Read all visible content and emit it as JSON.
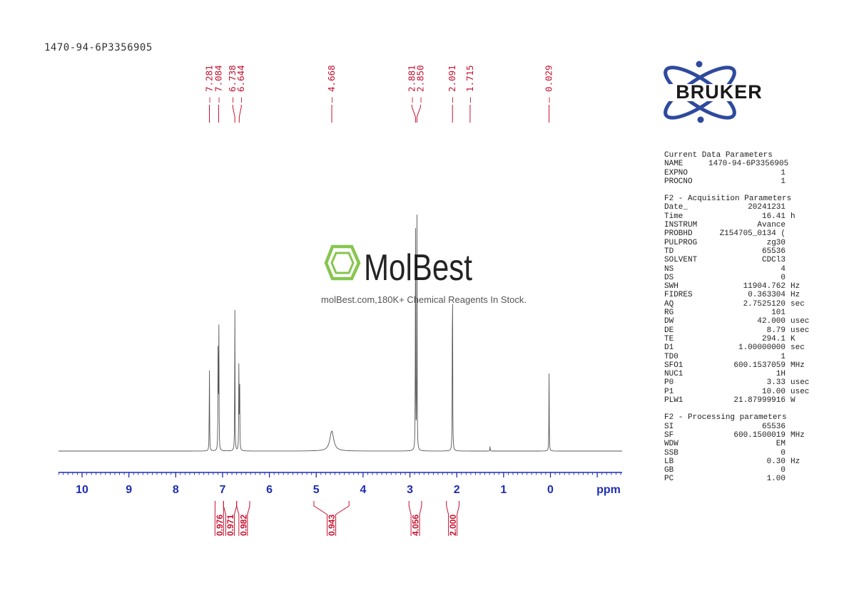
{
  "sample_name": "1470-94-6P3356905",
  "brand": {
    "name": "BRUKER",
    "color": "#2E4A9E"
  },
  "watermark": {
    "name": "MolBest",
    "tagline": "molBest.com,180K+ Chemical Reagents In Stock.",
    "accent_color": "#7DC242"
  },
  "parameters": {
    "current": {
      "title": "Current Data Parameters",
      "rows": [
        {
          "key": "NAME",
          "value": "1470-94-6P3356905",
          "unit": ""
        },
        {
          "key": "EXPNO",
          "value": "1",
          "unit": ""
        },
        {
          "key": "PROCNO",
          "value": "1",
          "unit": ""
        }
      ]
    },
    "acquisition": {
      "title": "F2 - Acquisition Parameters",
      "rows": [
        {
          "key": "Date_",
          "value": "20241231",
          "unit": ""
        },
        {
          "key": "Time",
          "value": "16.41",
          "unit": "h"
        },
        {
          "key": "INSTRUM",
          "value": "Avance",
          "unit": ""
        },
        {
          "key": "PROBHD",
          "value": "Z154705_0134 (",
          "unit": ""
        },
        {
          "key": "PULPROG",
          "value": "zg30",
          "unit": ""
        },
        {
          "key": "TD",
          "value": "65536",
          "unit": ""
        },
        {
          "key": "SOLVENT",
          "value": "CDCl3",
          "unit": ""
        },
        {
          "key": "NS",
          "value": "4",
          "unit": ""
        },
        {
          "key": "DS",
          "value": "0",
          "unit": ""
        },
        {
          "key": "SWH",
          "value": "11904.762",
          "unit": "Hz"
        },
        {
          "key": "FIDRES",
          "value": "0.363304",
          "unit": "Hz"
        },
        {
          "key": "AQ",
          "value": "2.7525120",
          "unit": "sec"
        },
        {
          "key": "RG",
          "value": "101",
          "unit": ""
        },
        {
          "key": "DW",
          "value": "42.000",
          "unit": "usec"
        },
        {
          "key": "DE",
          "value": "8.79",
          "unit": "usec"
        },
        {
          "key": "TE",
          "value": "294.1",
          "unit": "K"
        },
        {
          "key": "D1",
          "value": "1.00000000",
          "unit": "sec"
        },
        {
          "key": "TD0",
          "value": "1",
          "unit": ""
        },
        {
          "key": "SFO1",
          "value": "600.1537059",
          "unit": "MHz"
        },
        {
          "key": "NUC1",
          "value": "1H",
          "unit": ""
        },
        {
          "key": "P0",
          "value": "3.33",
          "unit": "usec"
        },
        {
          "key": "P1",
          "value": "10.00",
          "unit": "usec"
        },
        {
          "key": "PLW1",
          "value": "21.87999916",
          "unit": "W"
        }
      ]
    },
    "processing": {
      "title": "F2 - Processing parameters",
      "rows": [
        {
          "key": "SI",
          "value": "65536",
          "unit": ""
        },
        {
          "key": "SF",
          "value": "600.1500019",
          "unit": "MHz"
        },
        {
          "key": "WDW",
          "value": "EM",
          "unit": ""
        },
        {
          "key": "SSB",
          "value": "0",
          "unit": ""
        },
        {
          "key": "LB",
          "value": "0.30",
          "unit": "Hz"
        },
        {
          "key": "GB",
          "value": "0",
          "unit": ""
        },
        {
          "key": "PC",
          "value": "1.00",
          "unit": ""
        }
      ]
    }
  },
  "chart_data": {
    "type": "line",
    "title": "",
    "xlabel": "ppm",
    "ylabel": "",
    "xlim": [
      10.5,
      -1.5
    ],
    "x_reversed": true,
    "ylim": [
      0,
      1.0
    ],
    "grid": false,
    "colors": {
      "spectrum": "#555555",
      "annotation": "#C8102E",
      "axis": "#1F2DB4"
    },
    "x_ticks": [
      10,
      9,
      8,
      7,
      6,
      5,
      4,
      3,
      2,
      1,
      0
    ],
    "x_tick_labels": [
      "10",
      "9",
      "8",
      "7",
      "6",
      "5",
      "4",
      "3",
      "2",
      "1",
      "0"
    ],
    "peak_labels": [
      "7.281",
      "7.084",
      "6.738",
      "6.644",
      "4.668",
      "2.881",
      "2.850",
      "2.091",
      "1.715",
      "0.029"
    ],
    "peaks": [
      {
        "ppm": 7.281,
        "height": 0.39
      },
      {
        "ppm": 7.095,
        "height": 0.5
      },
      {
        "ppm": 7.079,
        "height": 0.52
      },
      {
        "ppm": 6.738,
        "height": 0.62
      },
      {
        "ppm": 6.652,
        "height": 0.35
      },
      {
        "ppm": 6.636,
        "height": 0.36
      },
      {
        "ppm": 4.668,
        "height": 0.085,
        "width": 0.05
      },
      {
        "ppm": 2.881,
        "height": 0.95
      },
      {
        "ppm": 2.85,
        "height": 0.99
      },
      {
        "ppm": 2.091,
        "height": 0.9
      },
      {
        "ppm": 1.29,
        "height": 0.02
      },
      {
        "ppm": 0.029,
        "height": 0.33
      }
    ],
    "integrals": [
      {
        "from": 7.16,
        "to": 6.98,
        "value": "0.976"
      },
      {
        "from": 6.98,
        "to": 6.7,
        "value": "0.971"
      },
      {
        "from": 6.7,
        "to": 6.42,
        "value": "0.982"
      },
      {
        "from": 5.05,
        "to": 4.3,
        "value": "0.943"
      },
      {
        "from": 3.02,
        "to": 2.75,
        "value": "4.056"
      },
      {
        "from": 2.22,
        "to": 1.95,
        "value": "2.000"
      }
    ]
  }
}
